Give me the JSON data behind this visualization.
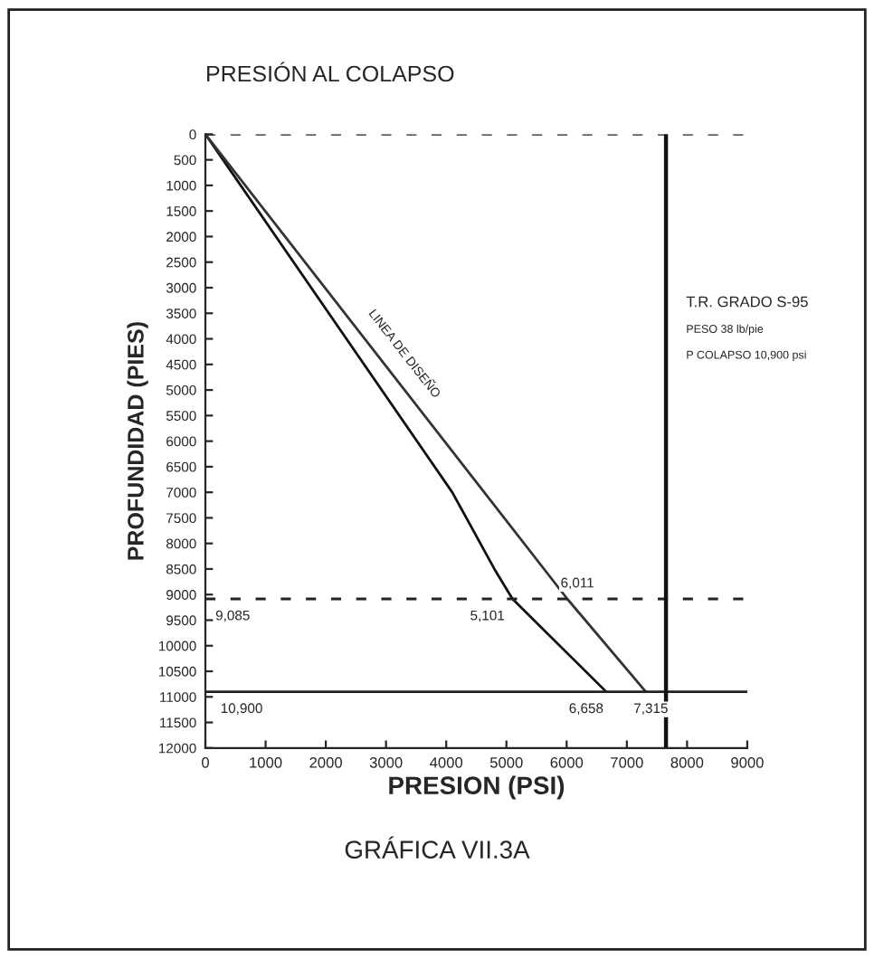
{
  "chart_data": {
    "type": "line",
    "title": "PRESIÓN AL COLAPSO",
    "xlabel": "PRESION (PSI)",
    "ylabel": "PROFUNDIDAD (PIES)",
    "series": [
      {
        "x": [
          0,
          4100,
          4800,
          5101,
          6658
        ],
        "values": [
          0,
          7000,
          8500,
          9085,
          10900
        ],
        "color": "#111111"
      },
      {
        "x": [
          0,
          6011,
          7315
        ],
        "values": [
          0,
          9085,
          10900
        ],
        "color": "#333333"
      }
    ],
    "xlim": [
      0,
      9000
    ],
    "xticks": [
      0,
      1000,
      2000,
      3000,
      4000,
      5000,
      6000,
      7000,
      8000,
      9000
    ],
    "ylim": [
      12000,
      0
    ],
    "yticks": [
      0,
      500,
      1000,
      1500,
      2000,
      2500,
      3000,
      3500,
      4000,
      4500,
      5000,
      5500,
      6000,
      6500,
      7000,
      7500,
      8000,
      8500,
      9000,
      9500,
      10000,
      10500,
      11000,
      11500,
      12000
    ],
    "ref_lines": [
      {
        "axis": "y",
        "value": 0,
        "line_style": "dashed"
      },
      {
        "axis": "y",
        "value": 9085,
        "line_style": "dashed"
      },
      {
        "axis": "y",
        "value": 10900,
        "line_style": "solid"
      },
      {
        "axis": "x",
        "value": 7650,
        "line_style": "solid"
      }
    ],
    "annotations": [
      "LINEA DE DISEÑO",
      {
        "text": "6,011",
        "x": 6011,
        "y": 9085
      },
      {
        "text": "5,101",
        "x": 5101,
        "y": 9085
      },
      {
        "text": "6,658",
        "x": 6658,
        "y": 10900
      },
      {
        "text": "7,315",
        "x": 7315,
        "y": 10900
      },
      {
        "text": "9,085",
        "x": 0,
        "y": 9085
      },
      {
        "text": "10,900",
        "x": 0,
        "y": 10900
      },
      "T.R. GRADO S-95",
      "PESO 38 lb/pie",
      "P COLAPSO 10,900 psi",
      "GRÁFICA VII.3A"
    ],
    "grid": false,
    "legend": false,
    "line_style": "solid",
    "marker": "none"
  }
}
